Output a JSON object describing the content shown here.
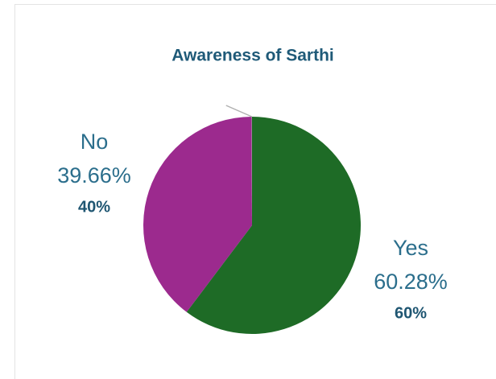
{
  "chart_data": {
    "type": "pie",
    "title": "Awareness of Sarthi",
    "categories": [
      "Yes",
      "No",
      null
    ],
    "values": [
      60.28,
      39.66,
      0.06
    ],
    "value_labels": [
      "60.28%",
      "39.66%",
      null
    ],
    "percent_labels": [
      "60%",
      "40%",
      null
    ],
    "colors": [
      "#1e6b26",
      "#9c2a8e",
      "#b0b0b0"
    ]
  }
}
